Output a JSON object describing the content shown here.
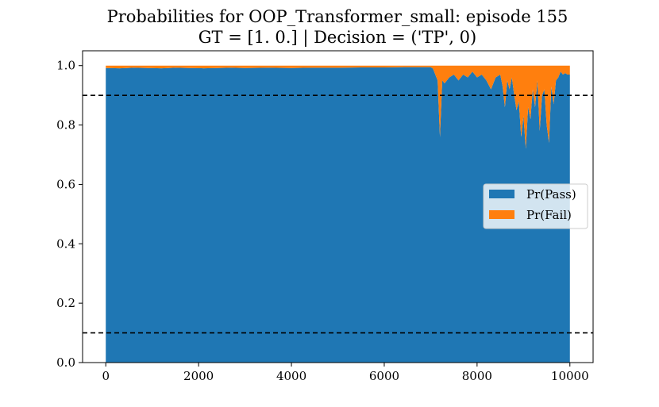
{
  "chart_data": {
    "type": "area",
    "title": "Probabilities for OOP_Transformer_small: episode 155",
    "subtitle": "GT = [1. 0.] | Decision = ('TP', 0)",
    "xlabel": "",
    "ylabel": "",
    "xlim": [
      -500,
      10500
    ],
    "ylim": [
      0.0,
      1.05
    ],
    "xticks": [
      "0",
      "2000",
      "4000",
      "6000",
      "8000",
      "10000"
    ],
    "xtick_values": [
      0,
      2000,
      4000,
      6000,
      8000,
      10000
    ],
    "yticks": [
      "0.0",
      "0.2",
      "0.4",
      "0.6",
      "0.8",
      "1.0"
    ],
    "ytick_values": [
      0.0,
      0.2,
      0.4,
      0.6,
      0.8,
      1.0
    ],
    "stacked": true,
    "grid": false,
    "legend_position": "center-right",
    "thresholds": [
      0.9,
      0.1
    ],
    "x": [
      0,
      300,
      600,
      900,
      1200,
      1500,
      1800,
      2100,
      2400,
      2700,
      3000,
      3500,
      4000,
      4500,
      5000,
      5500,
      6000,
      6500,
      7000,
      7050,
      7100,
      7150,
      7200,
      7250,
      7300,
      7400,
      7500,
      7600,
      7700,
      7800,
      7900,
      8000,
      8100,
      8200,
      8300,
      8400,
      8500,
      8550,
      8600,
      8650,
      8700,
      8750,
      8800,
      8850,
      8900,
      8950,
      9000,
      9050,
      9100,
      9150,
      9200,
      9250,
      9300,
      9350,
      9400,
      9450,
      9500,
      9550,
      9600,
      9650,
      9700,
      9750,
      9800,
      9850,
      9900,
      9950,
      10000
    ],
    "series": [
      {
        "name": "Pr(Pass)",
        "color": "#1f77b4",
        "values": [
          0.992,
          0.991,
          0.993,
          0.992,
          0.991,
          0.993,
          0.992,
          0.991,
          0.992,
          0.993,
          0.992,
          0.993,
          0.992,
          0.993,
          0.993,
          0.994,
          0.994,
          0.995,
          0.995,
          0.99,
          0.97,
          0.95,
          0.76,
          0.95,
          0.94,
          0.96,
          0.97,
          0.95,
          0.97,
          0.96,
          0.98,
          0.96,
          0.97,
          0.95,
          0.92,
          0.96,
          0.97,
          0.93,
          0.86,
          0.95,
          0.92,
          0.96,
          0.9,
          0.85,
          0.88,
          0.76,
          0.83,
          0.72,
          0.86,
          0.82,
          0.92,
          0.86,
          0.95,
          0.78,
          0.9,
          0.92,
          0.8,
          0.74,
          0.93,
          0.87,
          0.95,
          0.96,
          0.98,
          0.97,
          0.975,
          0.97,
          0.97
        ]
      },
      {
        "name": "Pr(Fail)",
        "color": "#ff7f0e",
        "values": [
          0.008,
          0.009,
          0.007,
          0.008,
          0.009,
          0.007,
          0.008,
          0.009,
          0.008,
          0.007,
          0.008,
          0.007,
          0.008,
          0.007,
          0.007,
          0.006,
          0.006,
          0.005,
          0.005,
          0.01,
          0.03,
          0.05,
          0.24,
          0.05,
          0.06,
          0.04,
          0.03,
          0.05,
          0.03,
          0.04,
          0.02,
          0.04,
          0.03,
          0.05,
          0.08,
          0.04,
          0.03,
          0.07,
          0.14,
          0.05,
          0.08,
          0.04,
          0.1,
          0.15,
          0.12,
          0.24,
          0.17,
          0.28,
          0.14,
          0.18,
          0.08,
          0.14,
          0.05,
          0.22,
          0.1,
          0.08,
          0.2,
          0.26,
          0.07,
          0.13,
          0.05,
          0.04,
          0.02,
          0.03,
          0.025,
          0.03,
          0.03
        ]
      }
    ]
  }
}
